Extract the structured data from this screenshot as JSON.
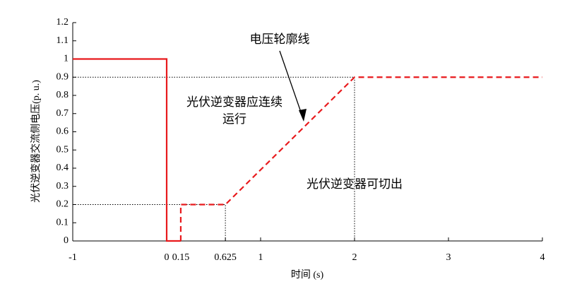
{
  "chart_data": {
    "type": "line",
    "xlabel": "时间 (s)",
    "ylabel": "光伏逆变器交流侧电压(p. u.)",
    "xlim": [
      -1,
      4
    ],
    "ylim": [
      0,
      1.2
    ],
    "xticks": [
      -1,
      0,
      0.15,
      0.625,
      1,
      2,
      3,
      4
    ],
    "yticks": [
      0,
      0.1,
      0.2,
      0.3,
      0.4,
      0.5,
      0.6,
      0.7,
      0.8,
      0.9,
      1,
      1.1,
      1.2
    ],
    "series": [
      {
        "color": "#e8191c",
        "style": "solid",
        "x": [
          -1,
          0,
          0,
          0.15
        ],
        "values": [
          1,
          1,
          0,
          0
        ]
      },
      {
        "color": "#e8191c",
        "style": "dashed",
        "x": [
          0.15,
          0.15,
          0.625,
          2,
          4
        ],
        "values": [
          0,
          0.2,
          0.2,
          0.9,
          0.9
        ]
      }
    ],
    "reference_lines": [
      {
        "x": [
          -1,
          2,
          2
        ],
        "y": [
          0.9,
          0.9,
          0
        ]
      },
      {
        "x": [
          -1,
          0.625,
          0.625
        ],
        "y": [
          0.2,
          0.2,
          0
        ]
      }
    ],
    "annotations": [
      "电压轮廓线",
      [
        "光伏逆变器应连续",
        "运行"
      ],
      "光伏逆变器可切出"
    ]
  }
}
